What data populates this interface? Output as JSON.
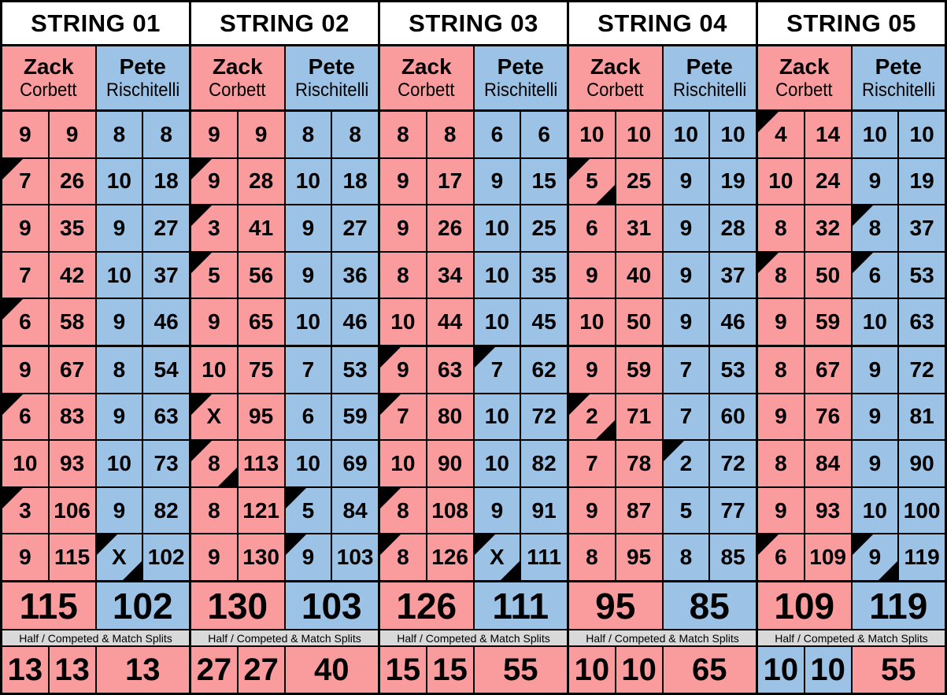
{
  "colors": {
    "pink": "#FA9C9E",
    "blue": "#9CC2E5",
    "header_bg": "#FFFFFF",
    "strip_bg": "#D9D9D9",
    "line": "#000000"
  },
  "strings": [
    {
      "title": "STRING 01",
      "splits_label": "Half / Competed & Match Splits",
      "players": [
        {
          "first": "Zack",
          "last": "Corbett",
          "color": "pink",
          "final": "115",
          "rounds": [
            {
              "score": "9",
              "total": "9"
            },
            {
              "score": "7",
              "total": "26",
              "tl": true
            },
            {
              "score": "9",
              "total": "35"
            },
            {
              "score": "7",
              "total": "42"
            },
            {
              "score": "6",
              "total": "58",
              "tl": true
            },
            {
              "score": "9",
              "total": "67"
            },
            {
              "score": "6",
              "total": "83",
              "tl": true
            },
            {
              "score": "10",
              "total": "93"
            },
            {
              "score": "3",
              "total": "106",
              "tl": true
            },
            {
              "score": "9",
              "total": "115"
            }
          ]
        },
        {
          "first": "Pete",
          "last": "Rischitelli",
          "color": "blue",
          "final": "102",
          "rounds": [
            {
              "score": "8",
              "total": "8"
            },
            {
              "score": "10",
              "total": "18"
            },
            {
              "score": "9",
              "total": "27"
            },
            {
              "score": "10",
              "total": "37"
            },
            {
              "score": "9",
              "total": "46"
            },
            {
              "score": "8",
              "total": "54"
            },
            {
              "score": "9",
              "total": "63"
            },
            {
              "score": "10",
              "total": "73"
            },
            {
              "score": "9",
              "total": "82"
            },
            {
              "score": "X",
              "total": "102",
              "tl": true,
              "br": true
            }
          ]
        }
      ],
      "splits": [
        {
          "value": "13",
          "color": "pink"
        },
        {
          "value": "13",
          "color": "pink"
        },
        {
          "value": "13",
          "color": "pink"
        }
      ]
    },
    {
      "title": "STRING 02",
      "splits_label": "Half / Competed & Match Splits",
      "players": [
        {
          "first": "Zack",
          "last": "Corbett",
          "color": "pink",
          "final": "130",
          "rounds": [
            {
              "score": "9",
              "total": "9"
            },
            {
              "score": "9",
              "total": "28",
              "tl": true
            },
            {
              "score": "3",
              "total": "41",
              "tl": true
            },
            {
              "score": "5",
              "total": "56",
              "tl": true
            },
            {
              "score": "9",
              "total": "65"
            },
            {
              "score": "10",
              "total": "75"
            },
            {
              "score": "X",
              "total": "95",
              "tl": true
            },
            {
              "score": "8",
              "total": "113",
              "tl": true,
              "br": true
            },
            {
              "score": "8",
              "total": "121"
            },
            {
              "score": "9",
              "total": "130"
            }
          ]
        },
        {
          "first": "Pete",
          "last": "Rischitelli",
          "color": "blue",
          "final": "103",
          "rounds": [
            {
              "score": "8",
              "total": "8"
            },
            {
              "score": "10",
              "total": "18"
            },
            {
              "score": "9",
              "total": "27"
            },
            {
              "score": "9",
              "total": "36"
            },
            {
              "score": "10",
              "total": "46"
            },
            {
              "score": "7",
              "total": "53"
            },
            {
              "score": "6",
              "total": "59"
            },
            {
              "score": "10",
              "total": "69"
            },
            {
              "score": "5",
              "total": "84",
              "tl": true
            },
            {
              "score": "9",
              "total": "103",
              "tl": true
            }
          ]
        }
      ],
      "splits": [
        {
          "value": "27",
          "color": "pink"
        },
        {
          "value": "27",
          "color": "pink"
        },
        {
          "value": "40",
          "color": "pink"
        }
      ]
    },
    {
      "title": "STRING 03",
      "splits_label": "Half / Competed & Match Splits",
      "players": [
        {
          "first": "Zack",
          "last": "Corbett",
          "color": "pink",
          "final": "126",
          "rounds": [
            {
              "score": "8",
              "total": "8"
            },
            {
              "score": "9",
              "total": "17"
            },
            {
              "score": "9",
              "total": "26"
            },
            {
              "score": "8",
              "total": "34"
            },
            {
              "score": "10",
              "total": "44"
            },
            {
              "score": "9",
              "total": "63",
              "tl": true
            },
            {
              "score": "7",
              "total": "80",
              "tl": true
            },
            {
              "score": "10",
              "total": "90"
            },
            {
              "score": "8",
              "total": "108",
              "tl": true
            },
            {
              "score": "8",
              "total": "126",
              "tl": true
            }
          ]
        },
        {
          "first": "Pete",
          "last": "Rischitelli",
          "color": "blue",
          "final": "111",
          "rounds": [
            {
              "score": "6",
              "total": "6"
            },
            {
              "score": "9",
              "total": "15"
            },
            {
              "score": "10",
              "total": "25"
            },
            {
              "score": "10",
              "total": "35"
            },
            {
              "score": "10",
              "total": "45"
            },
            {
              "score": "7",
              "total": "62",
              "tl": true
            },
            {
              "score": "10",
              "total": "72"
            },
            {
              "score": "10",
              "total": "82"
            },
            {
              "score": "9",
              "total": "91"
            },
            {
              "score": "X",
              "total": "111",
              "tl": true,
              "br": true
            }
          ]
        }
      ],
      "splits": [
        {
          "value": "15",
          "color": "pink"
        },
        {
          "value": "15",
          "color": "pink"
        },
        {
          "value": "55",
          "color": "pink"
        }
      ]
    },
    {
      "title": "STRING 04",
      "splits_label": "Half / Competed & Match Splits",
      "players": [
        {
          "first": "Zack",
          "last": "Corbett",
          "color": "pink",
          "final": "95",
          "rounds": [
            {
              "score": "10",
              "total": "10"
            },
            {
              "score": "5",
              "total": "25",
              "tl": true,
              "br": true
            },
            {
              "score": "6",
              "total": "31"
            },
            {
              "score": "9",
              "total": "40"
            },
            {
              "score": "10",
              "total": "50"
            },
            {
              "score": "9",
              "total": "59"
            },
            {
              "score": "2",
              "total": "71",
              "tl": true,
              "br": true
            },
            {
              "score": "7",
              "total": "78"
            },
            {
              "score": "9",
              "total": "87"
            },
            {
              "score": "8",
              "total": "95"
            }
          ]
        },
        {
          "first": "Pete",
          "last": "Rischitelli",
          "color": "blue",
          "final": "85",
          "rounds": [
            {
              "score": "10",
              "total": "10"
            },
            {
              "score": "9",
              "total": "19"
            },
            {
              "score": "9",
              "total": "28"
            },
            {
              "score": "9",
              "total": "37"
            },
            {
              "score": "9",
              "total": "46"
            },
            {
              "score": "7",
              "total": "53"
            },
            {
              "score": "7",
              "total": "60"
            },
            {
              "score": "2",
              "total": "72",
              "tl": true
            },
            {
              "score": "5",
              "total": "77"
            },
            {
              "score": "8",
              "total": "85"
            }
          ]
        }
      ],
      "splits": [
        {
          "value": "10",
          "color": "pink"
        },
        {
          "value": "10",
          "color": "pink"
        },
        {
          "value": "65",
          "color": "pink"
        }
      ]
    },
    {
      "title": "STRING 05",
      "splits_label": "Half / Competed & Match Splits",
      "players": [
        {
          "first": "Zack",
          "last": "Corbett",
          "color": "pink",
          "final": "109",
          "rounds": [
            {
              "score": "4",
              "total": "14",
              "tl": true
            },
            {
              "score": "10",
              "total": "24"
            },
            {
              "score": "8",
              "total": "32"
            },
            {
              "score": "8",
              "total": "50",
              "tl": true
            },
            {
              "score": "9",
              "total": "59"
            },
            {
              "score": "8",
              "total": "67"
            },
            {
              "score": "9",
              "total": "76"
            },
            {
              "score": "8",
              "total": "84"
            },
            {
              "score": "9",
              "total": "93"
            },
            {
              "score": "6",
              "total": "109",
              "tl": true
            }
          ]
        },
        {
          "first": "Pete",
          "last": "Rischitelli",
          "color": "blue",
          "final": "119",
          "rounds": [
            {
              "score": "10",
              "total": "10"
            },
            {
              "score": "9",
              "total": "19"
            },
            {
              "score": "8",
              "total": "37",
              "tl": true
            },
            {
              "score": "6",
              "total": "53",
              "tl": true
            },
            {
              "score": "10",
              "total": "63"
            },
            {
              "score": "9",
              "total": "72"
            },
            {
              "score": "9",
              "total": "81"
            },
            {
              "score": "9",
              "total": "90"
            },
            {
              "score": "10",
              "total": "100"
            },
            {
              "score": "9",
              "total": "119",
              "tl": true,
              "br": true
            }
          ]
        }
      ],
      "splits": [
        {
          "value": "10",
          "color": "blue"
        },
        {
          "value": "10",
          "color": "blue"
        },
        {
          "value": "55",
          "color": "pink"
        }
      ]
    }
  ]
}
